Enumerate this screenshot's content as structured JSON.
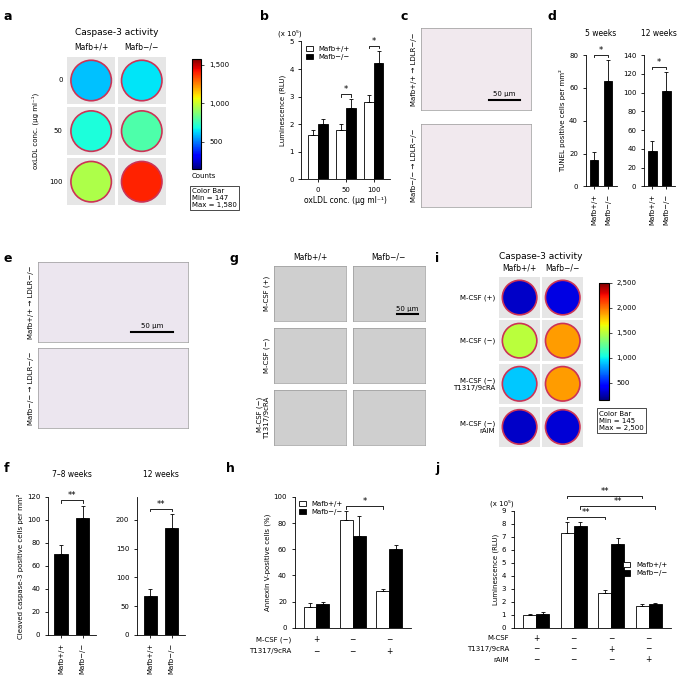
{
  "chart_data": [
    {
      "label": "b",
      "type": "bar",
      "categories": [
        "0",
        "50",
        "100"
      ],
      "x_label": "oxLDL conc. (μg ml⁻¹)",
      "y_label": "Luminescence (RLU)",
      "y_unit_note": "(x 10⁵)",
      "series": [
        {
          "name": "Mafb+/+",
          "color": "#ffffff",
          "values": [
            1.6,
            1.8,
            2.8
          ],
          "errors": [
            0.2,
            0.2,
            0.25
          ]
        },
        {
          "name": "Mafb−/−",
          "color": "#000000",
          "values": [
            2.0,
            2.6,
            4.2
          ],
          "errors": [
            0.2,
            0.3,
            0.45
          ]
        }
      ],
      "ylim": [
        0,
        5
      ],
      "yticks": [
        0,
        1,
        2,
        3,
        4,
        5
      ],
      "legend": "upper left",
      "significance": [
        {
          "from": [
            1,
            0
          ],
          "to": [
            1,
            1
          ],
          "label": "*"
        },
        {
          "from": [
            2,
            0
          ],
          "to": [
            2,
            1
          ],
          "label": "*"
        }
      ]
    },
    {
      "label": "d",
      "type": "bar",
      "title": "5 weeks",
      "y_label": "TUNEL positive cells per mm²",
      "categories": [
        "Mafb+/+",
        "Mafb−/−"
      ],
      "values": [
        16,
        64
      ],
      "errors": [
        5,
        13
      ],
      "color": "#000000",
      "ylim": [
        0,
        80
      ],
      "yticks": [
        0,
        20,
        40,
        60,
        80
      ],
      "significance": [
        {
          "from": [
            0,
            0
          ],
          "to": [
            1,
            0
          ],
          "label": "*"
        }
      ]
    },
    {
      "type": "bar",
      "title": "12 weeks",
      "categories": [
        "Mafb+/+",
        "Mafb−/−"
      ],
      "values": [
        38,
        102
      ],
      "errors": [
        10,
        20
      ],
      "color": "#000000",
      "ylim": [
        0,
        140
      ],
      "yticks": [
        0,
        20,
        40,
        60,
        80,
        100,
        120,
        140
      ],
      "significance": [
        {
          "from": [
            0,
            0
          ],
          "to": [
            1,
            0
          ],
          "label": "*"
        }
      ]
    },
    {
      "label": "f",
      "type": "bar",
      "title": "7–8 weeks",
      "y_label": "Cleaved caspase-3 positive cells per mm²",
      "categories": [
        "Mafb+/+",
        "Mafb−/−"
      ],
      "values": [
        70,
        102
      ],
      "errors": [
        8,
        10
      ],
      "color": "#000000",
      "ylim": [
        0,
        120
      ],
      "yticks": [
        0,
        20,
        40,
        60,
        80,
        100,
        120
      ],
      "significance": [
        {
          "from": [
            0,
            0
          ],
          "to": [
            1,
            0
          ],
          "label": "**"
        }
      ]
    },
    {
      "type": "bar",
      "title": "12 weeks",
      "categories": [
        "Mafb+/+",
        "Mafb−/−"
      ],
      "values": [
        68,
        185
      ],
      "errors": [
        12,
        25
      ],
      "color": "#000000",
      "ylim": [
        0,
        240
      ],
      "yticks": [
        0,
        50,
        100,
        150,
        200
      ],
      "significance": [
        {
          "from": [
            0,
            0
          ],
          "to": [
            1,
            0
          ],
          "label": "**"
        }
      ]
    },
    {
      "label": "h",
      "type": "bar",
      "y_label": "Annexin V-positive cells (%)",
      "tick_labels": "y",
      "x_rows": [
        {
          "label": "M-CSF (−)",
          "values": [
            "+",
            "−",
            "−"
          ]
        },
        {
          "label": "T1317/9cRA",
          "values": [
            "−",
            "−",
            "+"
          ]
        }
      ],
      "series": [
        {
          "name": "Mafb+/+",
          "color": "#ffffff",
          "values": [
            16,
            82,
            28
          ],
          "errors": [
            3,
            7,
            2
          ]
        },
        {
          "name": "Mafb−/−",
          "color": "#000000",
          "values": [
            18,
            70,
            60
          ],
          "errors": [
            2,
            15,
            3
          ]
        }
      ],
      "ylim": [
        0,
        100
      ],
      "yticks": [
        0,
        20,
        40,
        60,
        80,
        100
      ],
      "legend": "upper left",
      "significance": [
        {
          "from": [
            1,
            0
          ],
          "to": [
            2,
            0
          ],
          "label": "*"
        }
      ]
    },
    {
      "label": "j",
      "type": "bar",
      "y_label": "Luminescence (RLU)",
      "y_unit_note": "(x 10⁵)",
      "tick_labels": "y",
      "x_rows": [
        {
          "label": "M-CSF",
          "values": [
            "+",
            "−",
            "−",
            "−"
          ]
        },
        {
          "label": "T1317/9cRA",
          "values": [
            "−",
            "−",
            "+",
            "−"
          ]
        },
        {
          "label": "rAIM",
          "values": [
            "−",
            "−",
            "−",
            "+"
          ]
        }
      ],
      "series": [
        {
          "name": "Mafb+/+",
          "color": "#ffffff",
          "values": [
            1.0,
            7.3,
            2.7,
            1.7
          ],
          "errors": [
            0.1,
            0.8,
            0.2,
            0.1
          ]
        },
        {
          "name": "Mafb−/−",
          "color": "#000000",
          "values": [
            1.1,
            7.8,
            6.4,
            1.8
          ],
          "errors": [
            0.15,
            0.35,
            0.5,
            0.1
          ]
        }
      ],
      "ylim": [
        0,
        9
      ],
      "yticks": [
        0,
        1,
        2,
        3,
        4,
        5,
        6,
        7,
        8,
        9
      ],
      "legend": "center right",
      "significance": [
        {
          "from": [
            1,
            0
          ],
          "to": [
            2,
            0
          ],
          "label": "**"
        },
        {
          "from": [
            1,
            1
          ],
          "to": [
            3,
            1
          ],
          "label": "**"
        },
        {
          "from": [
            1,
            0
          ],
          "to": [
            3,
            0
          ],
          "label": "**"
        }
      ]
    }
  ],
  "image_panels": [
    {
      "label": "a",
      "type": "plate",
      "title": "Caspase-3 activity",
      "columns": [
        "Mafb+/+",
        "Mafb−/−"
      ],
      "row_header": "oxLDL conc. (μg ml⁻¹)",
      "rows": [
        "0",
        "50",
        "100"
      ],
      "values": [
        [
          600,
          650
        ],
        [
          700,
          780
        ],
        [
          950,
          1400
        ]
      ],
      "colorbar": {
        "label": "Counts",
        "range": [
          147,
          1580
        ],
        "ticks": [
          500,
          {
            "value": 1000,
            "label": "1,000"
          },
          {
            "value": 1500,
            "label": "1,500"
          }
        ],
        "legend_lines": [
          "Color Bar",
          "Min = 147",
          "Max = 1,580"
        ]
      }
    },
    {
      "label": "c",
      "type": "micrograph",
      "rows": [
        "Mafb+/+ → LDLR−/−",
        "Mafb−/− → LDLR−/−"
      ],
      "scale_bar": "50 μm"
    },
    {
      "label": "e",
      "type": "micrograph",
      "rows": [
        "Mafb+/+ → LDLR−/−",
        "Mafb−/− → LDLR−/−"
      ],
      "scale_bar": "50 μm"
    },
    {
      "label": "g",
      "type": "micrograph_grid",
      "columns": [
        "Mafb+/+",
        "Mafb−/−"
      ],
      "rows": [
        "M-CSF (+)",
        "M-CSF (−)",
        "M-CSF (−)\nT1317/9cRA"
      ],
      "scale_bar": "50 μm"
    },
    {
      "label": "i",
      "type": "plate",
      "title": "Caspase-3 activity",
      "columns": [
        "Mafb+/+",
        "Mafb−/−"
      ],
      "rows": [
        "M-CSF (+)",
        "M-CSF (−)",
        "M-CSF (−)\nT1317/9cRA",
        "M-CSF (−)\nrAIM"
      ],
      "values": [
        [
          300,
          350
        ],
        [
          1500,
          1900
        ],
        [
          900,
          1900
        ],
        [
          300,
          320
        ]
      ],
      "colorbar": {
        "range": [
          145,
          2500
        ],
        "ticks": [
          500,
          {
            "value": 1000,
            "label": "1,000"
          },
          {
            "value": 1500,
            "label": "1,500"
          },
          {
            "value": 2000,
            "label": "2,000"
          },
          {
            "value": 2500,
            "label": "2,500"
          }
        ],
        "legend_lines": [
          "Color Bar",
          "Min = 145",
          "Max = 2,500"
        ]
      }
    }
  ]
}
